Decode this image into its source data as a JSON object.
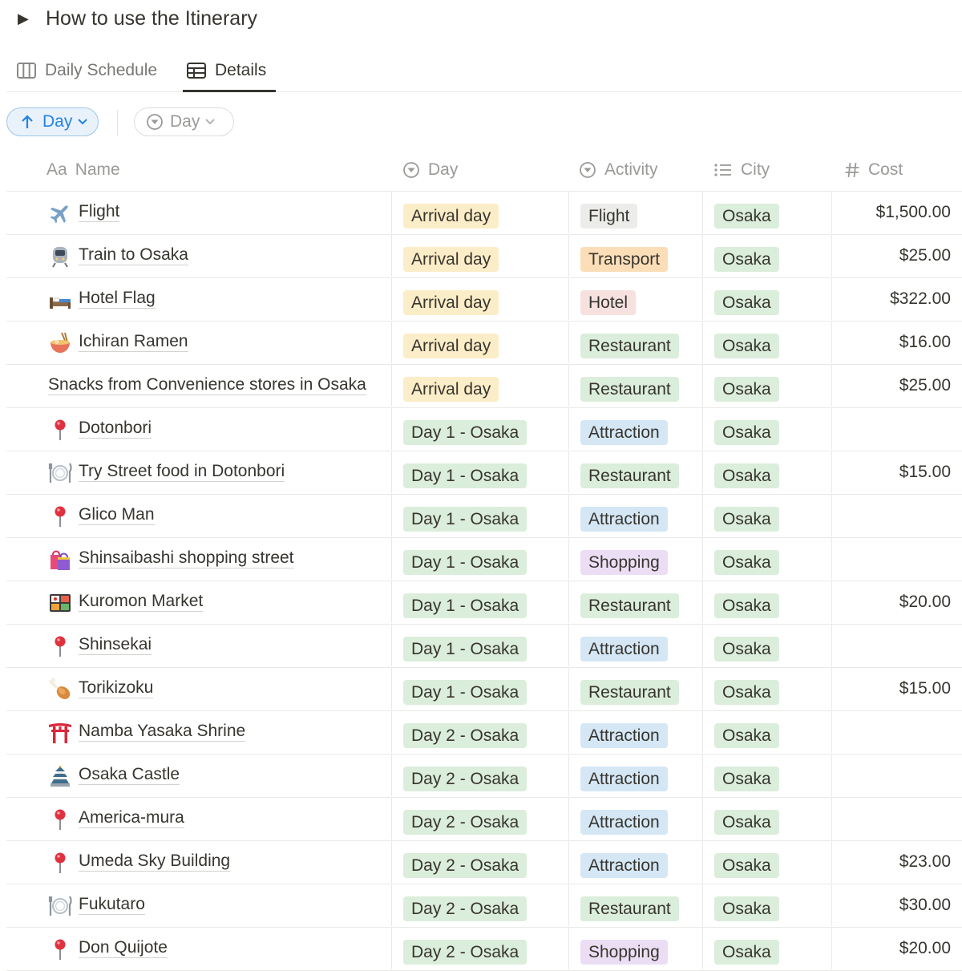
{
  "toggle": {
    "title": "How to use the Itinerary"
  },
  "tabs": [
    {
      "label": "Daily Schedule",
      "icon": "board-icon"
    },
    {
      "label": "Details",
      "icon": "table-icon",
      "active": true
    }
  ],
  "filters": {
    "sort_label": "Day",
    "filter_label": "Day"
  },
  "columns": {
    "name": "Name",
    "name_prefix": "Aa",
    "day": "Day",
    "activity": "Activity",
    "city": "City",
    "cost": "Cost"
  },
  "colors": {
    "yellow": "#fbedc7",
    "green": "#dbeddb",
    "gray": "#ececea",
    "orange": "#fbdeb8",
    "red": "#f6e1df",
    "blue": "#d5e7f5",
    "purple": "#ebdef4",
    "accent": "#2383e2"
  },
  "rows": [
    {
      "name": "Flight",
      "icon": "airplane-icon",
      "day": "Arrival day",
      "day_color": "yellow",
      "activity": "Flight",
      "activity_color": "gray",
      "city": "Osaka",
      "cost": "$1,500.00"
    },
    {
      "name": "Train to Osaka",
      "icon": "train-icon",
      "day": "Arrival day",
      "day_color": "yellow",
      "activity": "Transport",
      "activity_color": "orange",
      "city": "Osaka",
      "cost": "$25.00"
    },
    {
      "name": "Hotel Flag",
      "icon": "bed-icon",
      "day": "Arrival day",
      "day_color": "yellow",
      "activity": "Hotel",
      "activity_color": "red",
      "city": "Osaka",
      "cost": "$322.00"
    },
    {
      "name": "Ichiran Ramen",
      "icon": "ramen-icon",
      "day": "Arrival day",
      "day_color": "yellow",
      "activity": "Restaurant",
      "activity_color": "green",
      "city": "Osaka",
      "cost": "$16.00"
    },
    {
      "name": "Snacks from Convenience stores in Osaka",
      "icon": "",
      "day": "Arrival day",
      "day_color": "yellow",
      "activity": "Restaurant",
      "activity_color": "green",
      "city": "Osaka",
      "cost": "$25.00"
    },
    {
      "name": "Dotonbori",
      "icon": "pushpin-icon",
      "day": "Day 1 - Osaka",
      "day_color": "green",
      "activity": "Attraction",
      "activity_color": "blue",
      "city": "Osaka",
      "cost": ""
    },
    {
      "name": "Try Street food in Dotonbori",
      "icon": "fork-knife-icon",
      "day": "Day 1 - Osaka",
      "day_color": "green",
      "activity": "Restaurant",
      "activity_color": "green",
      "city": "Osaka",
      "cost": "$15.00"
    },
    {
      "name": "Glico Man",
      "icon": "pushpin-icon",
      "day": "Day 1 - Osaka",
      "day_color": "green",
      "activity": "Attraction",
      "activity_color": "blue",
      "city": "Osaka",
      "cost": ""
    },
    {
      "name": "Shinsaibashi shopping street",
      "icon": "shopping-bags-icon",
      "day": "Day 1 - Osaka",
      "day_color": "green",
      "activity": "Shopping",
      "activity_color": "purple",
      "city": "Osaka",
      "cost": ""
    },
    {
      "name": "Kuromon Market",
      "icon": "bento-icon",
      "day": "Day 1 - Osaka",
      "day_color": "green",
      "activity": "Restaurant",
      "activity_color": "green",
      "city": "Osaka",
      "cost": "$20.00"
    },
    {
      "name": "Shinsekai",
      "icon": "pushpin-icon",
      "day": "Day 1 - Osaka",
      "day_color": "green",
      "activity": "Attraction",
      "activity_color": "blue",
      "city": "Osaka",
      "cost": ""
    },
    {
      "name": "Torikizoku",
      "icon": "poultry-leg-icon",
      "day": "Day 1 - Osaka",
      "day_color": "green",
      "activity": "Restaurant",
      "activity_color": "green",
      "city": "Osaka",
      "cost": "$15.00"
    },
    {
      "name": "Namba Yasaka Shrine",
      "icon": "torii-icon",
      "day": "Day 2 - Osaka",
      "day_color": "green",
      "activity": "Attraction",
      "activity_color": "blue",
      "city": "Osaka",
      "cost": ""
    },
    {
      "name": "Osaka Castle",
      "icon": "castle-icon",
      "day": "Day 2 - Osaka",
      "day_color": "green",
      "activity": "Attraction",
      "activity_color": "blue",
      "city": "Osaka",
      "cost": ""
    },
    {
      "name": "America-mura",
      "icon": "pushpin-icon",
      "day": "Day 2 - Osaka",
      "day_color": "green",
      "activity": "Attraction",
      "activity_color": "blue",
      "city": "Osaka",
      "cost": ""
    },
    {
      "name": "Umeda Sky Building",
      "icon": "pushpin-icon",
      "day": "Day 2 - Osaka",
      "day_color": "green",
      "activity": "Attraction",
      "activity_color": "blue",
      "city": "Osaka",
      "cost": "$23.00"
    },
    {
      "name": "Fukutaro",
      "icon": "fork-knife-icon",
      "day": "Day 2 - Osaka",
      "day_color": "green",
      "activity": "Restaurant",
      "activity_color": "green",
      "city": "Osaka",
      "cost": "$30.00"
    },
    {
      "name": "Don Quijote",
      "icon": "pushpin-icon",
      "day": "Day 2 - Osaka",
      "day_color": "green",
      "activity": "Shopping",
      "activity_color": "purple",
      "city": "Osaka",
      "cost": "$20.00"
    }
  ]
}
